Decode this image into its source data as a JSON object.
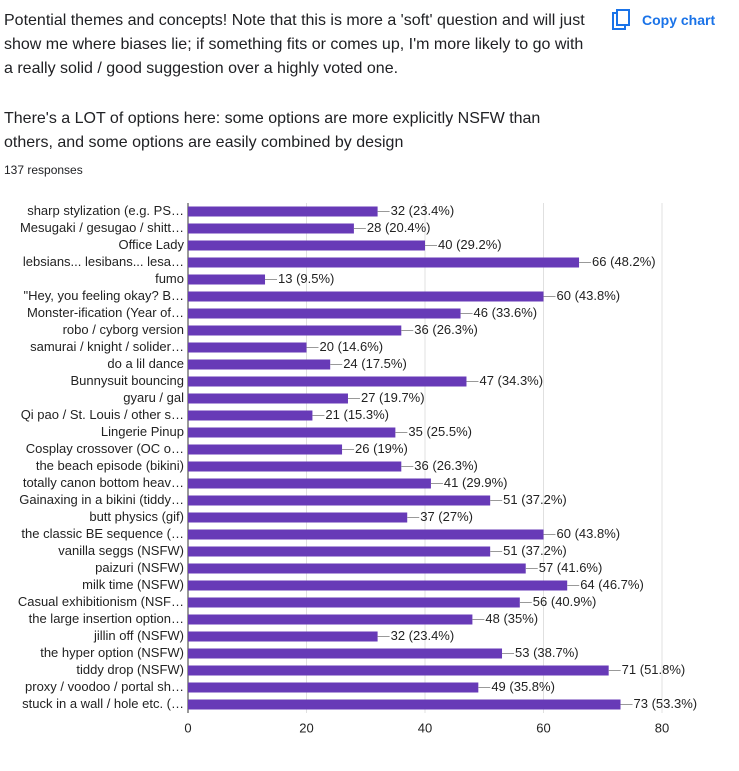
{
  "header": {
    "paragraphs": [
      "Potential themes and concepts! Note that this is more a 'soft' question and will just show me where biases lie; if something fits or comes up, I'm more likely to go with a really solid / good suggestion over a highly voted one.",
      "There's a LOT of options here: some options are more explicitly NSFW than others, and some options are easily combined by design"
    ],
    "responses": "137 responses",
    "copy_button": "Copy chart"
  },
  "chart_data": {
    "type": "bar",
    "orientation": "horizontal",
    "color": "#673ab7",
    "categories": [
      "sharp stylization (e.g. PS…",
      "Mesugaki / gesugao / shitt…",
      "Office Lady",
      "lebsians... lesibans... lesa…",
      "fumo",
      "\"Hey, you feeling okay? B…",
      "Monster-ification (Year of…",
      "robo / cyborg version",
      "samurai / knight / solider…",
      "do a lil dance",
      "Bunnysuit bouncing",
      "gyaru / gal",
      "Qi pao / St. Louis / other s…",
      "Lingerie Pinup",
      "Cosplay crossover (OC o…",
      "the beach episode (bikini)",
      "totally canon bottom heav…",
      "Gainaxing in a bikini (tiddy…",
      "butt physics (gif)",
      "the classic BE sequence (…",
      "vanilla seggs (NSFW)",
      "paizuri (NSFW)",
      "milk time (NSFW)",
      "Casual exhibitionism (NSF…",
      "the large insertion option…",
      "jillin off (NSFW)",
      "the hyper option (NSFW)",
      "tiddy drop (NSFW)",
      "proxy / voodoo / portal sh…",
      "stuck in a wall / hole etc. (…"
    ],
    "values": [
      32,
      28,
      40,
      66,
      13,
      60,
      46,
      36,
      20,
      24,
      47,
      27,
      21,
      35,
      26,
      36,
      41,
      51,
      37,
      60,
      51,
      57,
      64,
      56,
      48,
      32,
      53,
      71,
      49,
      73
    ],
    "value_labels": [
      "32 (23.4%)",
      "28 (20.4%)",
      "40 (29.2%)",
      "66 (48.2%)",
      "13 (9.5%)",
      "60 (43.8%)",
      "46 (33.6%)",
      "36 (26.3%)",
      "20 (14.6%)",
      "24 (17.5%)",
      "47 (34.3%)",
      "27 (19.7%)",
      "21 (15.3%)",
      "35 (25.5%)",
      "26 (19%)",
      "36 (26.3%)",
      "41 (29.9%)",
      "51 (37.2%)",
      "37 (27%)",
      "60 (43.8%)",
      "51 (37.2%)",
      "57 (41.6%)",
      "64 (46.7%)",
      "56 (40.9%)",
      "48 (35%)",
      "32 (23.4%)",
      "53 (38.7%)",
      "71 (51.8%)",
      "49 (35.8%)",
      "73 (53.3%)"
    ],
    "xlim": [
      0,
      80
    ],
    "xticks": [
      0,
      20,
      40,
      60,
      80
    ],
    "grid": true
  }
}
